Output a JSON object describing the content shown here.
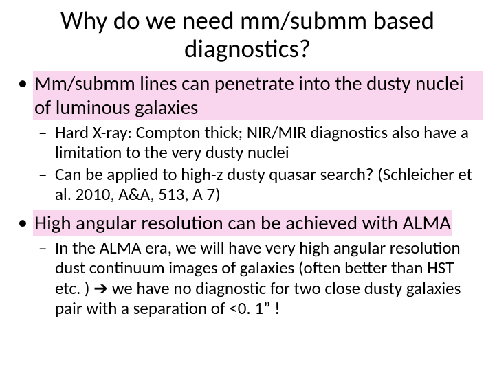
{
  "slide": {
    "title": "Why do we need mm/submm based diagnostics?",
    "background_color": "#ffffff",
    "highlight_color": "#fad6ee",
    "text_color": "#000000",
    "title_fontsize": 37,
    "bullet1_fontsize": 29,
    "bullet2_fontsize": 25,
    "bullets": [
      {
        "text": "Mm/submm lines can penetrate into the dusty nuclei of luminous galaxies",
        "highlighted": true,
        "sub": [
          {
            "text": "Hard X-ray: Compton thick; NIR/MIR diagnostics also have a limitation to the very dusty nuclei"
          },
          {
            "text": "Can be applied to high-z dusty quasar search? (Schleicher et al. 2010, A&A, 513, A 7)"
          }
        ]
      },
      {
        "text": "High angular resolution can be achieved with ALMA",
        "highlighted": true,
        "sub": [
          {
            "text": "In the ALMA era, we will have very high angular resolution dust continuum images of galaxies (often better than HST etc. ) ➔ we have no diagnostic for two close dusty galaxies pair with a separation of <0. 1” !"
          }
        ]
      }
    ]
  }
}
